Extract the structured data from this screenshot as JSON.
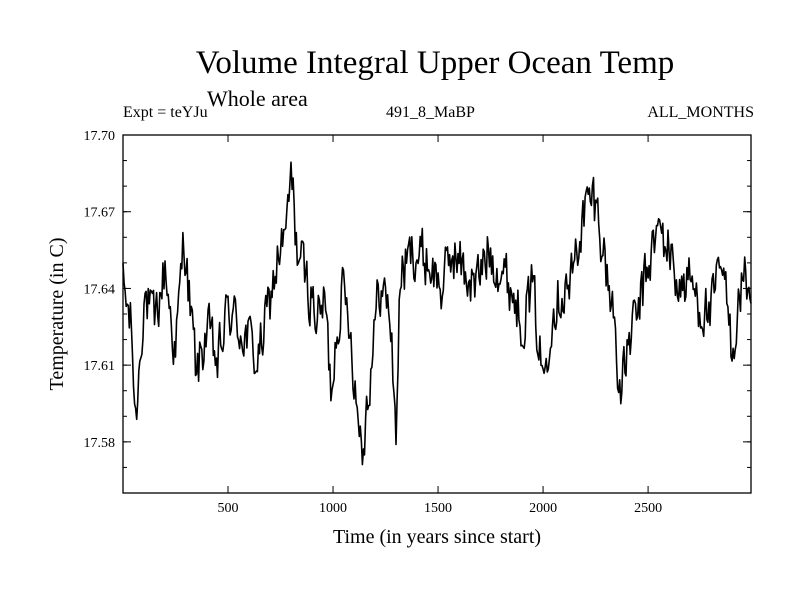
{
  "chart_data": {
    "type": "line",
    "title": "Volume Integral Upper Ocean Temp",
    "subtitle": "Whole area",
    "experiment_label": "Expt = teYJu",
    "run_label": "491_8_MaBP",
    "months_label": "ALL_MONTHS",
    "xlabel": "Time (in years since start)",
    "ylabel": "Temperature (in C)",
    "xlim": [
      0,
      2990
    ],
    "ylim": [
      17.56,
      17.7
    ],
    "x_ticks": [
      500,
      1000,
      1500,
      2000,
      2500
    ],
    "x_tick_labels": [
      "500",
      "1000",
      "1500",
      "2000",
      "2500"
    ],
    "y_ticks": [
      17.58,
      17.61,
      17.64,
      17.67,
      17.7
    ],
    "y_tick_labels": [
      "17.58",
      "17.61",
      "17.64",
      "17.67",
      "17.70"
    ],
    "grid": false,
    "series": [
      {
        "name": "Volume integral upper ocean temperature",
        "color": "#000000",
        "x": [
          0,
          40,
          60,
          100,
          150,
          200,
          250,
          290,
          320,
          350,
          400,
          450,
          500,
          550,
          600,
          640,
          690,
          740,
          780,
          800,
          830,
          880,
          930,
          960,
          990,
          1010,
          1040,
          1080,
          1110,
          1140,
          1180,
          1220,
          1270,
          1300,
          1320,
          1380,
          1450,
          1520,
          1570,
          1620,
          1680,
          1740,
          1790,
          1850,
          1900,
          1950,
          2000,
          2040,
          2080,
          2130,
          2180,
          2210,
          2240,
          2270,
          2300,
          2340,
          2370,
          2410,
          2450,
          2500,
          2550,
          2600,
          2650,
          2700,
          2750,
          2800,
          2850,
          2900,
          2950,
          2990
        ],
        "y": [
          17.641,
          17.624,
          17.588,
          17.638,
          17.625,
          17.648,
          17.614,
          17.661,
          17.632,
          17.606,
          17.624,
          17.61,
          17.632,
          17.625,
          17.62,
          17.611,
          17.631,
          17.653,
          17.662,
          17.685,
          17.655,
          17.641,
          17.628,
          17.636,
          17.601,
          17.618,
          17.64,
          17.628,
          17.597,
          17.578,
          17.61,
          17.641,
          17.632,
          17.584,
          17.644,
          17.655,
          17.651,
          17.64,
          17.655,
          17.647,
          17.641,
          17.655,
          17.649,
          17.64,
          17.628,
          17.64,
          17.604,
          17.631,
          17.639,
          17.641,
          17.664,
          17.673,
          17.675,
          17.666,
          17.647,
          17.628,
          17.597,
          17.62,
          17.629,
          17.649,
          17.663,
          17.655,
          17.64,
          17.643,
          17.633,
          17.63,
          17.649,
          17.617,
          17.644,
          17.64
        ]
      }
    ]
  }
}
